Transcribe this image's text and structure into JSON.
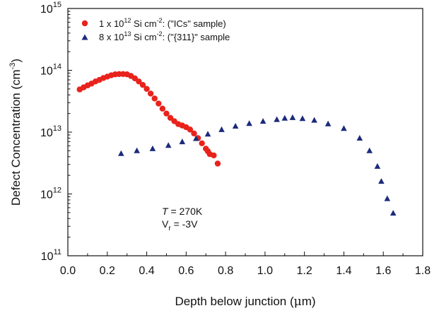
{
  "chart_data": {
    "type": "scatter",
    "xlabel_parts": [
      "Depth below junction (",
      "μ",
      "m)"
    ],
    "ylabel_parts": [
      "Defect Concentration (cm",
      "-3",
      ")"
    ],
    "xlim": [
      0.0,
      1.8
    ],
    "ylim": [
      100000000000.0,
      1000000000000000.0
    ],
    "y_scale": "log",
    "x_ticks": [
      "0.0",
      "0.2",
      "0.4",
      "0.6",
      "0.8",
      "1.0",
      "1.2",
      "1.4",
      "1.6",
      "1.8"
    ],
    "y_ticks": [
      {
        "base": "10",
        "exp": "11"
      },
      {
        "base": "10",
        "exp": "12"
      },
      {
        "base": "10",
        "exp": "13"
      },
      {
        "base": "10",
        "exp": "14"
      },
      {
        "base": "10",
        "exp": "15"
      }
    ],
    "legend_position": "top-left",
    "series": [
      {
        "legend_parts": [
          "1 x 10",
          "12",
          " Si cm",
          "-2",
          ": (\"ICs\" sample)"
        ],
        "marker": "circle",
        "color": "#e8231c",
        "points": [
          [
            0.06,
            49000000000000.0
          ],
          [
            0.08,
            53000000000000.0
          ],
          [
            0.1,
            57000000000000.0
          ],
          [
            0.12,
            61000000000000.0
          ],
          [
            0.14,
            66000000000000.0
          ],
          [
            0.16,
            70000000000000.0
          ],
          [
            0.18,
            75000000000000.0
          ],
          [
            0.2,
            79000000000000.0
          ],
          [
            0.22,
            83000000000000.0
          ],
          [
            0.24,
            86000000000000.0
          ],
          [
            0.26,
            87000000000000.0
          ],
          [
            0.28,
            87000000000000.0
          ],
          [
            0.3,
            86000000000000.0
          ],
          [
            0.32,
            81000000000000.0
          ],
          [
            0.34,
            74000000000000.0
          ],
          [
            0.36,
            66000000000000.0
          ],
          [
            0.38,
            58000000000000.0
          ],
          [
            0.4,
            50000000000000.0
          ],
          [
            0.42,
            42000000000000.0
          ],
          [
            0.44,
            35000000000000.0
          ],
          [
            0.46,
            29000000000000.0
          ],
          [
            0.48,
            24000000000000.0
          ],
          [
            0.5,
            20000000000000.0
          ],
          [
            0.52,
            17000000000000.0
          ],
          [
            0.54,
            15000000000000.0
          ],
          [
            0.56,
            13500000000000.0
          ],
          [
            0.58,
            12800000000000.0
          ],
          [
            0.6,
            12000000000000.0
          ],
          [
            0.62,
            11000000000000.0
          ],
          [
            0.64,
            9500000000000.0
          ],
          [
            0.66,
            8000000000000.0
          ],
          [
            0.68,
            6600000000000.0
          ],
          [
            0.7,
            5400000000000.0
          ],
          [
            0.71,
            4900000000000.0
          ],
          [
            0.72,
            4400000000000.0
          ],
          [
            0.74,
            4200000000000.0
          ],
          [
            0.76,
            3100000000000.0
          ]
        ]
      },
      {
        "legend_parts": [
          "8 x 10",
          "13",
          " Si cm",
          "-2",
          ": (\"{311}\" sample"
        ],
        "marker": "triangle",
        "color": "#1c2a7a",
        "points": [
          [
            0.27,
            4500000000000.0
          ],
          [
            0.35,
            5000000000000.0
          ],
          [
            0.43,
            5400000000000.0
          ],
          [
            0.51,
            6100000000000.0
          ],
          [
            0.58,
            7000000000000.0
          ],
          [
            0.65,
            7900000000000.0
          ],
          [
            0.71,
            9300000000000.0
          ],
          [
            0.78,
            11000000000000.0
          ],
          [
            0.85,
            12500000000000.0
          ],
          [
            0.92,
            13800000000000.0
          ],
          [
            0.99,
            15000000000000.0
          ],
          [
            1.06,
            16000000000000.0
          ],
          [
            1.1,
            16800000000000.0
          ],
          [
            1.14,
            17200000000000.0
          ],
          [
            1.19,
            16600000000000.0
          ],
          [
            1.25,
            15600000000000.0
          ],
          [
            1.32,
            13600000000000.0
          ],
          [
            1.4,
            11500000000000.0
          ],
          [
            1.48,
            8000000000000.0
          ],
          [
            1.53,
            5000000000000.0
          ],
          [
            1.57,
            2800000000000.0
          ],
          [
            1.59,
            1600000000000.0
          ],
          [
            1.62,
            840000000000.0
          ],
          [
            1.65,
            490000000000.0
          ]
        ]
      }
    ],
    "annotations": {
      "temperature": {
        "var": "T",
        "rest": " = 270K"
      },
      "voltage": {
        "var": "V",
        "sub": "r",
        "rest": " = -3V"
      }
    }
  }
}
